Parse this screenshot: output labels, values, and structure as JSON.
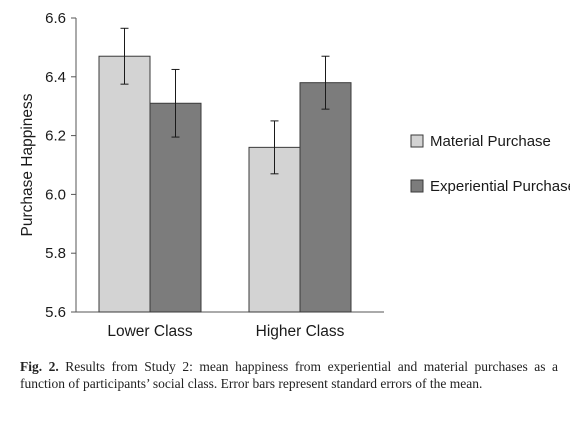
{
  "chart_data": {
    "type": "bar",
    "title": "",
    "xlabel": "",
    "ylabel": "Purchase Happiness",
    "ylim": [
      5.6,
      6.6
    ],
    "yticks": [
      "5.6",
      "5.8",
      "6.0",
      "6.2",
      "6.4",
      "6.6"
    ],
    "categories": [
      "Lower Class",
      "Higher Class"
    ],
    "series": [
      {
        "name": "Material Purchase",
        "color": "#d3d3d3",
        "values": [
          6.47,
          6.16
        ],
        "errors": [
          0.095,
          0.09
        ]
      },
      {
        "name": "Experiential Purchase",
        "color": "#7c7c7c",
        "values": [
          6.31,
          6.38
        ],
        "errors": [
          0.115,
          0.09
        ]
      }
    ],
    "legend": "right",
    "grid": false,
    "error_bars": "standard errors of the mean"
  },
  "caption": {
    "label": "Fig. 2.",
    "text": "Results from Study 2: mean happiness from experiential and material purchases as a function of participants’ social class. Error bars represent standard errors of the mean."
  }
}
